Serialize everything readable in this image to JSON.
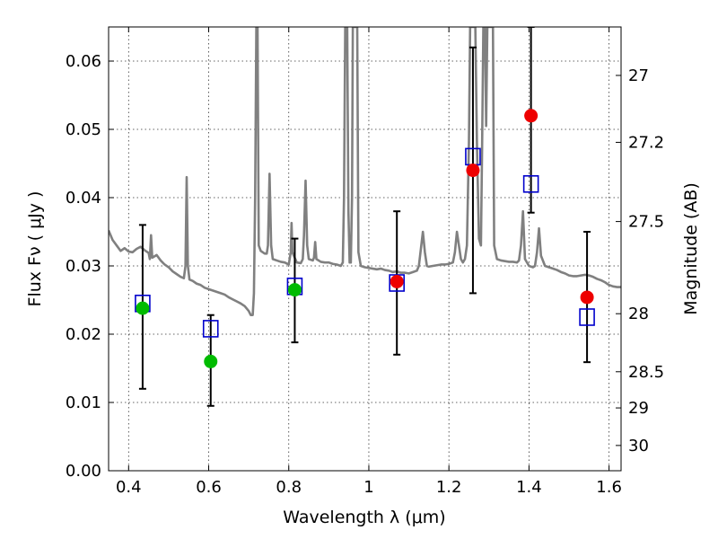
{
  "chart_data": {
    "type": "scatter",
    "xlabel": "Wavelength  λ (μm)",
    "ylabel": "Flux  Fν  ( μJy )",
    "y2label": "Magnitude (AB)",
    "xlim": [
      0.35,
      1.63
    ],
    "ylim": [
      0.0,
      0.065
    ],
    "grid": true,
    "x_ticks": [
      0.4,
      0.6,
      0.8,
      1.0,
      1.2,
      1.4,
      1.6
    ],
    "x_tick_labels": [
      "0.4",
      "0.6",
      "0.8",
      "1",
      "1.2",
      "1.4",
      "1.6"
    ],
    "y_ticks": [
      0.0,
      0.01,
      0.02,
      0.03,
      0.04,
      0.05,
      0.06
    ],
    "y_tick_labels": [
      "0.00",
      "0.01",
      "0.02",
      "0.03",
      "0.04",
      "0.05",
      "0.06"
    ],
    "y2_ticks": [
      {
        "label": "27",
        "flux": 0.0579
      },
      {
        "label": "27.2",
        "flux": 0.0481
      },
      {
        "label": "27.5",
        "flux": 0.0365
      },
      {
        "label": "28",
        "flux": 0.023
      },
      {
        "label": "28.5",
        "flux": 0.0145
      },
      {
        "label": "29",
        "flux": 0.0092
      },
      {
        "label": "30",
        "flux": 0.0037
      }
    ],
    "series": [
      {
        "marker": "open-square",
        "color": "#0000cc",
        "points": [
          {
            "x": 0.435,
            "y": 0.0245
          },
          {
            "x": 0.605,
            "y": 0.0208
          },
          {
            "x": 0.815,
            "y": 0.027
          },
          {
            "x": 1.07,
            "y": 0.0275
          },
          {
            "x": 1.26,
            "y": 0.046
          },
          {
            "x": 1.405,
            "y": 0.042
          },
          {
            "x": 1.545,
            "y": 0.0225
          }
        ]
      },
      {
        "marker": "filled-circle",
        "color": "#00bb00",
        "points": [
          {
            "x": 0.435,
            "y": 0.0238
          },
          {
            "x": 0.605,
            "y": 0.016
          },
          {
            "x": 0.815,
            "y": 0.0265
          }
        ]
      },
      {
        "marker": "filled-circle",
        "color": "#ee0000",
        "points": [
          {
            "x": 1.07,
            "y": 0.0277
          },
          {
            "x": 1.26,
            "y": 0.044
          },
          {
            "x": 1.405,
            "y": 0.052
          },
          {
            "x": 1.545,
            "y": 0.0254
          }
        ]
      }
    ],
    "error_bars": [
      {
        "x": 0.435,
        "low": 0.012,
        "high": 0.036
      },
      {
        "x": 0.605,
        "low": 0.0095,
        "high": 0.0228
      },
      {
        "x": 0.815,
        "low": 0.0188,
        "high": 0.034
      },
      {
        "x": 1.07,
        "low": 0.017,
        "high": 0.038
      },
      {
        "x": 1.26,
        "low": 0.026,
        "high": 0.062
      },
      {
        "x": 1.405,
        "low": 0.0378,
        "high": 0.065
      },
      {
        "x": 1.545,
        "low": 0.0159,
        "high": 0.035
      }
    ],
    "spectrum": {
      "color": "#808080",
      "points": [
        [
          0.35,
          0.0352
        ],
        [
          0.36,
          0.0338
        ],
        [
          0.37,
          0.033
        ],
        [
          0.38,
          0.0322
        ],
        [
          0.39,
          0.0326
        ],
        [
          0.4,
          0.0321
        ],
        [
          0.41,
          0.032
        ],
        [
          0.42,
          0.0325
        ],
        [
          0.43,
          0.0328
        ],
        [
          0.44,
          0.0323
        ],
        [
          0.45,
          0.0319
        ],
        [
          0.453,
          0.031
        ],
        [
          0.456,
          0.0345
        ],
        [
          0.459,
          0.0312
        ],
        [
          0.47,
          0.0316
        ],
        [
          0.48,
          0.0308
        ],
        [
          0.49,
          0.0302
        ],
        [
          0.5,
          0.0298
        ],
        [
          0.51,
          0.0292
        ],
        [
          0.52,
          0.0288
        ],
        [
          0.53,
          0.0284
        ],
        [
          0.538,
          0.0282
        ],
        [
          0.542,
          0.03
        ],
        [
          0.545,
          0.043
        ],
        [
          0.548,
          0.03
        ],
        [
          0.552,
          0.028
        ],
        [
          0.56,
          0.0278
        ],
        [
          0.57,
          0.0274
        ],
        [
          0.58,
          0.0272
        ],
        [
          0.59,
          0.0268
        ],
        [
          0.6,
          0.0266
        ],
        [
          0.61,
          0.0264
        ],
        [
          0.62,
          0.0262
        ],
        [
          0.63,
          0.026
        ],
        [
          0.64,
          0.0258
        ],
        [
          0.65,
          0.0254
        ],
        [
          0.66,
          0.0251
        ],
        [
          0.67,
          0.0248
        ],
        [
          0.68,
          0.0245
        ],
        [
          0.69,
          0.0241
        ],
        [
          0.7,
          0.0234
        ],
        [
          0.705,
          0.0228
        ],
        [
          0.71,
          0.0228
        ],
        [
          0.713,
          0.026
        ],
        [
          0.716,
          0.04
        ],
        [
          0.719,
          0.065
        ],
        [
          0.722,
          0.065
        ],
        [
          0.725,
          0.033
        ],
        [
          0.73,
          0.0322
        ],
        [
          0.74,
          0.0318
        ],
        [
          0.745,
          0.0318
        ],
        [
          0.748,
          0.033
        ],
        [
          0.752,
          0.0435
        ],
        [
          0.756,
          0.033
        ],
        [
          0.76,
          0.031
        ],
        [
          0.77,
          0.0308
        ],
        [
          0.78,
          0.0306
        ],
        [
          0.79,
          0.0305
        ],
        [
          0.8,
          0.0302
        ],
        [
          0.805,
          0.032
        ],
        [
          0.807,
          0.0363
        ],
        [
          0.809,
          0.032
        ],
        [
          0.82,
          0.0305
        ],
        [
          0.83,
          0.0304
        ],
        [
          0.835,
          0.031
        ],
        [
          0.838,
          0.0345
        ],
        [
          0.842,
          0.0425
        ],
        [
          0.846,
          0.033
        ],
        [
          0.85,
          0.031
        ],
        [
          0.86,
          0.0308
        ],
        [
          0.863,
          0.0312
        ],
        [
          0.866,
          0.0335
        ],
        [
          0.869,
          0.031
        ],
        [
          0.88,
          0.0306
        ],
        [
          0.89,
          0.0305
        ],
        [
          0.9,
          0.0305
        ],
        [
          0.91,
          0.0303
        ],
        [
          0.92,
          0.0302
        ],
        [
          0.93,
          0.03
        ],
        [
          0.935,
          0.0305
        ],
        [
          0.938,
          0.04
        ],
        [
          0.941,
          0.065
        ],
        [
          0.946,
          0.065
        ],
        [
          0.949,
          0.038
        ],
        [
          0.952,
          0.0305
        ],
        [
          0.955,
          0.0305
        ],
        [
          0.958,
          0.04
        ],
        [
          0.96,
          0.065
        ],
        [
          0.963,
          0.065
        ],
        [
          0.966,
          0.065
        ],
        [
          0.968,
          0.065
        ],
        [
          0.971,
          0.065
        ],
        [
          0.974,
          0.032
        ],
        [
          0.98,
          0.03
        ],
        [
          0.99,
          0.0298
        ],
        [
          1.0,
          0.0297
        ],
        [
          1.01,
          0.0296
        ],
        [
          1.02,
          0.0295
        ],
        [
          1.03,
          0.0296
        ],
        [
          1.04,
          0.0294
        ],
        [
          1.05,
          0.0293
        ],
        [
          1.06,
          0.0291
        ],
        [
          1.07,
          0.0292
        ],
        [
          1.08,
          0.029
        ],
        [
          1.09,
          0.029
        ],
        [
          1.1,
          0.0289
        ],
        [
          1.11,
          0.0291
        ],
        [
          1.12,
          0.0293
        ],
        [
          1.125,
          0.03
        ],
        [
          1.13,
          0.0325
        ],
        [
          1.135,
          0.035
        ],
        [
          1.14,
          0.032
        ],
        [
          1.145,
          0.03
        ],
        [
          1.15,
          0.0299
        ],
        [
          1.16,
          0.03
        ],
        [
          1.17,
          0.0301
        ],
        [
          1.18,
          0.0302
        ],
        [
          1.19,
          0.0302
        ],
        [
          1.2,
          0.0303
        ],
        [
          1.21,
          0.0305
        ],
        [
          1.215,
          0.032
        ],
        [
          1.22,
          0.035
        ],
        [
          1.225,
          0.033
        ],
        [
          1.23,
          0.031
        ],
        [
          1.235,
          0.0305
        ],
        [
          1.24,
          0.031
        ],
        [
          1.245,
          0.033
        ],
        [
          1.25,
          0.048
        ],
        [
          1.253,
          0.065
        ],
        [
          1.258,
          0.065
        ],
        [
          1.262,
          0.065
        ],
        [
          1.266,
          0.065
        ],
        [
          1.27,
          0.048
        ],
        [
          1.275,
          0.034
        ],
        [
          1.28,
          0.033
        ],
        [
          1.283,
          0.048
        ],
        [
          1.286,
          0.065
        ],
        [
          1.29,
          0.065
        ],
        [
          1.293,
          0.0505
        ],
        [
          1.296,
          0.065
        ],
        [
          1.3,
          0.065
        ],
        [
          1.305,
          0.065
        ],
        [
          1.31,
          0.065
        ],
        [
          1.313,
          0.033
        ],
        [
          1.32,
          0.031
        ],
        [
          1.33,
          0.0308
        ],
        [
          1.34,
          0.0307
        ],
        [
          1.35,
          0.0306
        ],
        [
          1.36,
          0.0306
        ],
        [
          1.37,
          0.0305
        ],
        [
          1.375,
          0.0308
        ],
        [
          1.38,
          0.033
        ],
        [
          1.385,
          0.038
        ],
        [
          1.39,
          0.031
        ],
        [
          1.4,
          0.03
        ],
        [
          1.41,
          0.0298
        ],
        [
          1.415,
          0.03
        ],
        [
          1.42,
          0.032
        ],
        [
          1.425,
          0.0355
        ],
        [
          1.43,
          0.0315
        ],
        [
          1.44,
          0.03
        ],
        [
          1.45,
          0.0298
        ],
        [
          1.46,
          0.0296
        ],
        [
          1.47,
          0.0294
        ],
        [
          1.48,
          0.0291
        ],
        [
          1.49,
          0.0289
        ],
        [
          1.5,
          0.0286
        ],
        [
          1.51,
          0.0285
        ],
        [
          1.52,
          0.0285
        ],
        [
          1.53,
          0.0286
        ],
        [
          1.54,
          0.0287
        ],
        [
          1.55,
          0.0286
        ],
        [
          1.56,
          0.0284
        ],
        [
          1.57,
          0.0281
        ],
        [
          1.58,
          0.0279
        ],
        [
          1.59,
          0.0276
        ],
        [
          1.6,
          0.0272
        ],
        [
          1.61,
          0.027
        ],
        [
          1.62,
          0.0269
        ],
        [
          1.63,
          0.0269
        ]
      ]
    }
  }
}
